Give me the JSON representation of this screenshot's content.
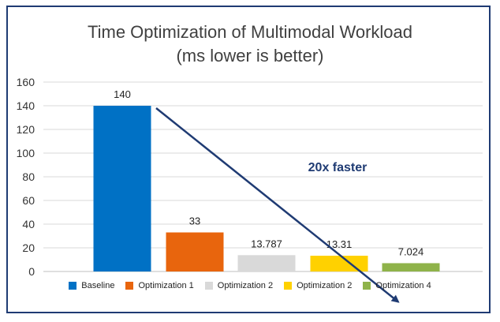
{
  "chart_data": {
    "type": "bar",
    "title": "Time Optimization of Multimodal Workload",
    "subtitle": "(ms lower is better)",
    "categories": [
      "Baseline",
      "Optimization 1",
      "Optimization 2",
      "Optimization 2",
      "Optimization 4"
    ],
    "values": [
      140,
      33,
      13.787,
      13.31,
      7.024
    ],
    "value_labels": [
      "140",
      "33",
      "13.787",
      "13.31",
      "7.024"
    ],
    "colors": [
      "#0071c5",
      "#e8650d",
      "#d9d9d9",
      "#ffd100",
      "#8fb34a"
    ],
    "ylim": [
      0,
      160
    ],
    "yticks": [
      0,
      20,
      40,
      60,
      80,
      100,
      120,
      140,
      160
    ],
    "grid": true,
    "legend_position": "bottom",
    "annotation": "20x faster",
    "annotation_color": "#1f3b73"
  }
}
